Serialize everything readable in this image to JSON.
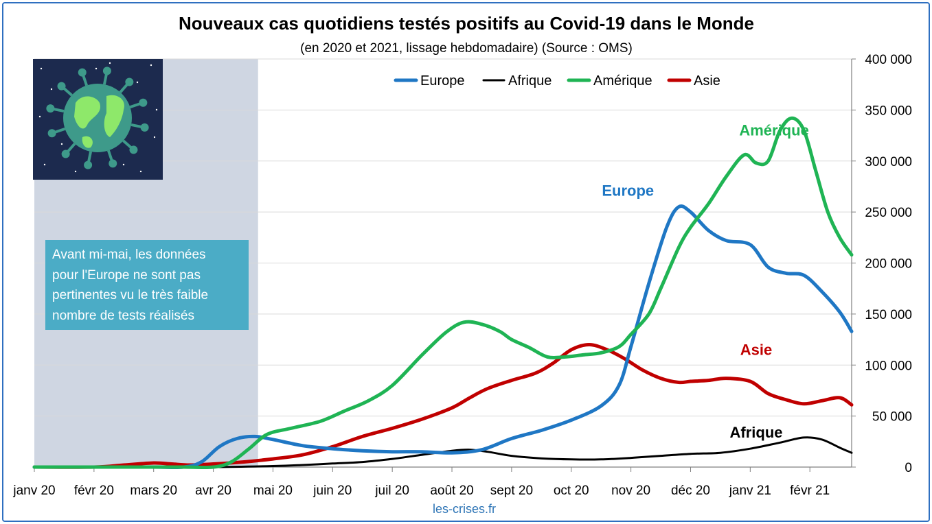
{
  "colors": {
    "europe": "#1f77c4",
    "afrique": "#000000",
    "amerique": "#1fb454",
    "asie": "#c00000",
    "shade": "#cfd6e2",
    "frame": "#2e6fc0",
    "note_bg": "#4bacc6",
    "logo_bg": "#1c2a4e",
    "logo_land": "#8ee86a",
    "logo_ocean": "#3e9a8a"
  },
  "chart_data": {
    "type": "line",
    "title": "Nouveaux cas quotidiens testés positifs au Covid-19 dans le Monde",
    "subtitle": "(en 2020 et 2021, lissage hebdomadaire) (Source : OMS)",
    "x_axis": {
      "categories": [
        "janv 20",
        "févr 20",
        "mars 20",
        "avr 20",
        "mai 20",
        "juin 20",
        "juil 20",
        "août 20",
        "sept 20",
        "oct 20",
        "nov 20",
        "déc 20",
        "janv 21",
        "févr 21"
      ],
      "range_months": [
        0,
        13.7
      ]
    },
    "y_axis": {
      "position": "right",
      "range": [
        0,
        400000
      ],
      "ticks": [
        "0",
        "50 000",
        "100 000",
        "150 000",
        "200 000",
        "250 000",
        "300 000",
        "350 000",
        "400 000"
      ],
      "grid": true
    },
    "legend": {
      "placement": "top",
      "entries": [
        "Europe",
        "Afrique",
        "Amérique",
        "Asie"
      ]
    },
    "shaded_period_months": [
      0,
      3.75
    ],
    "series": [
      {
        "name": "Europe",
        "color_key": "europe",
        "x": [
          0,
          1,
          2,
          2.5,
          2.8,
          3.1,
          3.4,
          3.7,
          4,
          4.5,
          5,
          5.5,
          6,
          6.5,
          7,
          7.5,
          8,
          8.5,
          9,
          9.5,
          9.8,
          10,
          10.3,
          10.6,
          10.8,
          11,
          11.3,
          11.6,
          12,
          12.3,
          12.6,
          12.9,
          13.2,
          13.5,
          13.7
        ],
        "y": [
          0,
          0,
          0,
          0,
          5000,
          20000,
          28000,
          30000,
          27000,
          21000,
          18000,
          16000,
          15000,
          15000,
          14000,
          17000,
          28000,
          36000,
          46000,
          60000,
          80000,
          118000,
          180000,
          235000,
          255000,
          250000,
          232000,
          222000,
          218000,
          196000,
          190000,
          188000,
          172000,
          152000,
          133000
        ]
      },
      {
        "name": "Afrique",
        "color_key": "afrique",
        "x": [
          0,
          2,
          3,
          4,
          4.5,
          5,
          5.5,
          6,
          6.5,
          7,
          7.3,
          7.6,
          8,
          8.5,
          9,
          9.5,
          10,
          10.5,
          11,
          11.5,
          12,
          12.5,
          12.9,
          13.2,
          13.5,
          13.7
        ],
        "y": [
          0,
          0,
          0,
          1000,
          2000,
          3500,
          5000,
          8000,
          12000,
          16000,
          17000,
          15000,
          11000,
          8500,
          7500,
          7500,
          9000,
          11000,
          13000,
          14000,
          18000,
          24000,
          29000,
          27000,
          19000,
          14000
        ]
      },
      {
        "name": "Amérique",
        "color_key": "amerique",
        "x": [
          0,
          2,
          2.5,
          3,
          3.3,
          3.6,
          3.9,
          4.3,
          4.8,
          5.2,
          5.6,
          6,
          6.5,
          6.9,
          7.2,
          7.5,
          7.8,
          8,
          8.3,
          8.6,
          8.9,
          9.2,
          9.5,
          9.8,
          10,
          10.3,
          10.5,
          10.8,
          11,
          11.3,
          11.6,
          11.9,
          12.1,
          12.3,
          12.5,
          12.7,
          12.9,
          13.1,
          13.3,
          13.5,
          13.7
        ],
        "y": [
          0,
          0,
          0,
          0,
          5000,
          18000,
          32000,
          38000,
          45000,
          55000,
          65000,
          80000,
          110000,
          132000,
          142000,
          140000,
          133000,
          125000,
          117000,
          108000,
          108000,
          110000,
          112000,
          118000,
          130000,
          150000,
          175000,
          215000,
          235000,
          258000,
          285000,
          306000,
          298000,
          300000,
          330000,
          342000,
          330000,
          290000,
          250000,
          225000,
          208000
        ]
      },
      {
        "name": "Asie",
        "color_key": "asie",
        "x": [
          0,
          1,
          1.5,
          2,
          2.3,
          2.6,
          3,
          3.5,
          4,
          4.5,
          5,
          5.5,
          6,
          6.5,
          7,
          7.3,
          7.6,
          8,
          8.4,
          8.7,
          9,
          9.3,
          9.6,
          9.9,
          10.2,
          10.5,
          10.8,
          11,
          11.3,
          11.6,
          12,
          12.3,
          12.6,
          12.9,
          13.2,
          13.5,
          13.7
        ],
        "y": [
          0,
          0,
          2000,
          4000,
          3000,
          2000,
          3000,
          5000,
          8000,
          12000,
          20000,
          30000,
          38000,
          47000,
          58000,
          68000,
          77000,
          85000,
          92000,
          102000,
          115000,
          120000,
          115000,
          106000,
          95000,
          87000,
          83000,
          84000,
          85000,
          87000,
          84000,
          72000,
          66000,
          62000,
          65000,
          68000,
          61000
        ]
      }
    ],
    "annotations": [
      {
        "text": "Amérique",
        "color_key": "amerique",
        "x": 12.4,
        "y": 325000
      },
      {
        "text": "Europe",
        "color_key": "europe",
        "x": 9.95,
        "y": 266000
      },
      {
        "text": "Asie",
        "color_key": "asie",
        "x": 12.1,
        "y": 110000
      },
      {
        "text": "Afrique",
        "color_key": "afrique",
        "x": 12.1,
        "y": 29000
      }
    ]
  },
  "note": {
    "lines": [
      "Avant mi-mai, les données",
      "pour l'Europe ne sont pas",
      "pertinentes vu le très faible",
      "nombre de tests réalisés"
    ]
  },
  "source": "les-crises.fr",
  "logo": {
    "icon": "virus-earth-icon"
  }
}
